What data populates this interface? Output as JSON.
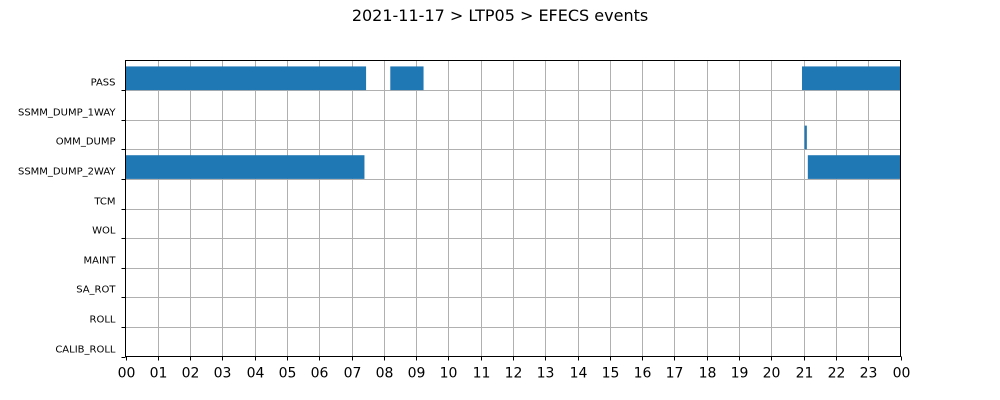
{
  "chart_data": {
    "type": "gantt",
    "title": "2021-11-17 > LTP05 > EFECS events",
    "xlabel": "",
    "ylabel": "",
    "x_unit": "hour",
    "xlim": [
      0,
      24
    ],
    "ylim": [
      0,
      10
    ],
    "grid": true,
    "categories": [
      "PASS",
      "SSMM_DUMP_1WAY",
      "OMM_DUMP",
      "SSMM_DUMP_2WAY",
      "TCM",
      "WOL",
      "MAINT",
      "SA_ROT",
      "ROLL",
      "CALIB_ROLL"
    ],
    "x_ticks": [
      0,
      1,
      2,
      3,
      4,
      5,
      6,
      7,
      8,
      9,
      10,
      11,
      12,
      13,
      14,
      15,
      16,
      17,
      18,
      19,
      20,
      21,
      22,
      23,
      24
    ],
    "x_tick_labels": [
      "00",
      "01",
      "02",
      "03",
      "04",
      "05",
      "06",
      "07",
      "08",
      "09",
      "10",
      "11",
      "12",
      "13",
      "14",
      "15",
      "16",
      "17",
      "18",
      "19",
      "20",
      "21",
      "22",
      "23",
      "00"
    ],
    "bar_color": "#1f77b4",
    "series": [
      {
        "category": "PASS",
        "start": 0.0,
        "end": 7.45
      },
      {
        "category": "PASS",
        "start": 8.2,
        "end": 9.23
      },
      {
        "category": "PASS",
        "start": 20.95,
        "end": 24.0
      },
      {
        "category": "OMM_DUMP",
        "start": 21.03,
        "end": 21.1
      },
      {
        "category": "SSMM_DUMP_2WAY",
        "start": 0.0,
        "end": 7.4
      },
      {
        "category": "SSMM_DUMP_2WAY",
        "start": 21.13,
        "end": 24.0
      }
    ]
  }
}
